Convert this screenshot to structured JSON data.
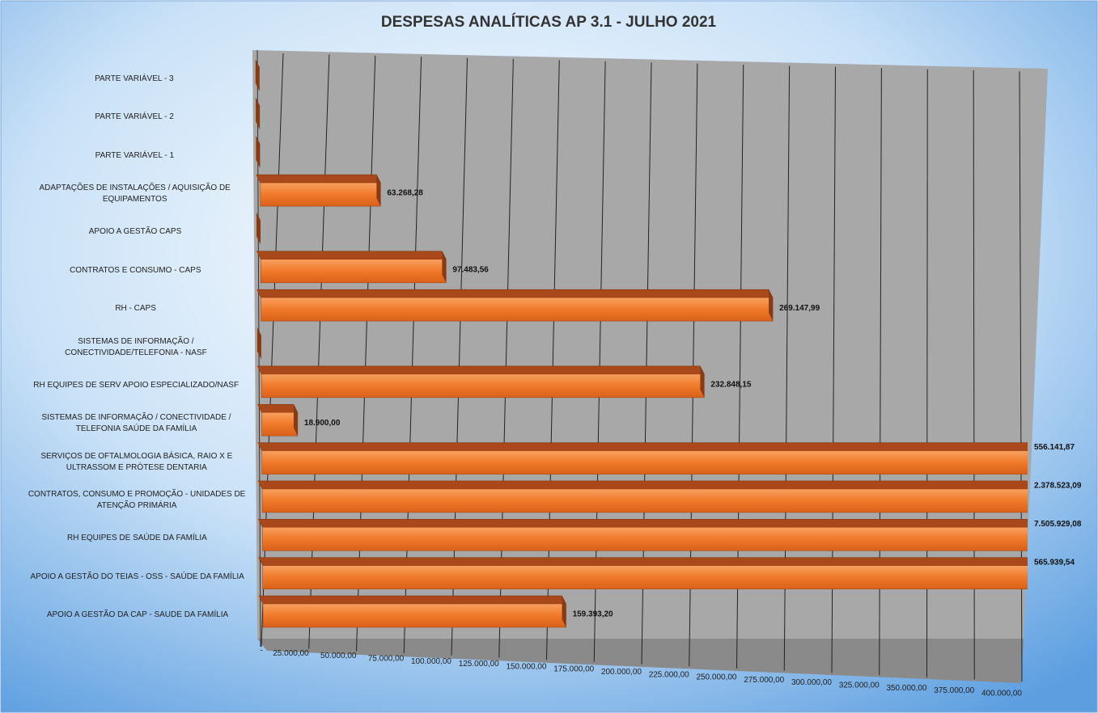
{
  "chart_data": {
    "type": "bar3d_horizontal",
    "title": "DESPESAS ANALÍTICAS AP 3.1 - JULHO 2021",
    "categories": [
      "APOIO A GESTÃO DA CAP - SAUDE DA FAMÍLIA",
      "APOIO A GESTÃO DO TEIAS - OSS - SAÚDE DA FAMÍLIA",
      "RH EQUIPES DE SAÚDE DA FAMÍLIA",
      "CONTRATOS, CONSUMO E PROMOÇÃO - UNIDADES DE ATENÇÃO PRIMÁRIA",
      "SERVIÇOS DE OFTALMOLOGIA BÁSICA, RAIO X E ULTRASSOM E PRÓTESE DENTARIA",
      "SISTEMAS DE INFORMAÇÃO / CONECTIVIDADE / TELEFONIA SAÚDE DA FAMÍLIA",
      "RH EQUIPES DE SERV APOIO ESPECIALIZADO/NASF",
      "SISTEMAS DE INFORMAÇÃO / CONECTIVIDADE/TELEFONIA - NASF",
      "RH - CAPS",
      "CONTRATOS E CONSUMO - CAPS",
      "APOIO A GESTÃO CAPS",
      "ADAPTAÇÕES DE INSTALAÇÕES / AQUISIÇÃO DE EQUIPAMENTOS",
      "PARTE VARIÁVEL - 1",
      "PARTE VARIÁVEL - 2",
      "PARTE VARIÁVEL - 3"
    ],
    "values": [
      159393.2,
      565939.54,
      7505929.08,
      2378523.09,
      556141.87,
      18900.0,
      232848.15,
      0,
      269147.99,
      97483.56,
      0,
      63268.28,
      0,
      0,
      0
    ],
    "value_labels": [
      "159.393,20",
      "565.939,54",
      "7.505.929,08",
      "2.378.523,09",
      "556.141,87",
      "18.900,00",
      "232.848,15",
      null,
      "269.147,99",
      "97.483,56",
      null,
      "63.268,28",
      null,
      null,
      null
    ],
    "color": "#f07a2a",
    "xlim": [
      0,
      400000
    ],
    "xticks": [
      {
        "value": 0,
        "label": "-"
      },
      {
        "value": 25000,
        "label": "25.000,00"
      },
      {
        "value": 50000,
        "label": "50.000,00"
      },
      {
        "value": 75000,
        "label": "75.000,00"
      },
      {
        "value": 100000,
        "label": "100.000,00"
      },
      {
        "value": 125000,
        "label": "125.000,00"
      },
      {
        "value": 150000,
        "label": "150.000,00"
      },
      {
        "value": 175000,
        "label": "175.000,00"
      },
      {
        "value": 200000,
        "label": "200.000,00"
      },
      {
        "value": 225000,
        "label": "225.000,00"
      },
      {
        "value": 250000,
        "label": "250.000,00"
      },
      {
        "value": 275000,
        "label": "275.000,00"
      },
      {
        "value": 300000,
        "label": "300.000,00"
      },
      {
        "value": 325000,
        "label": "325.000,00"
      },
      {
        "value": 350000,
        "label": "350.000,00"
      },
      {
        "value": 375000,
        "label": "375.000,00"
      },
      {
        "value": 400000,
        "label": "400.000,00"
      }
    ],
    "grid": true
  }
}
